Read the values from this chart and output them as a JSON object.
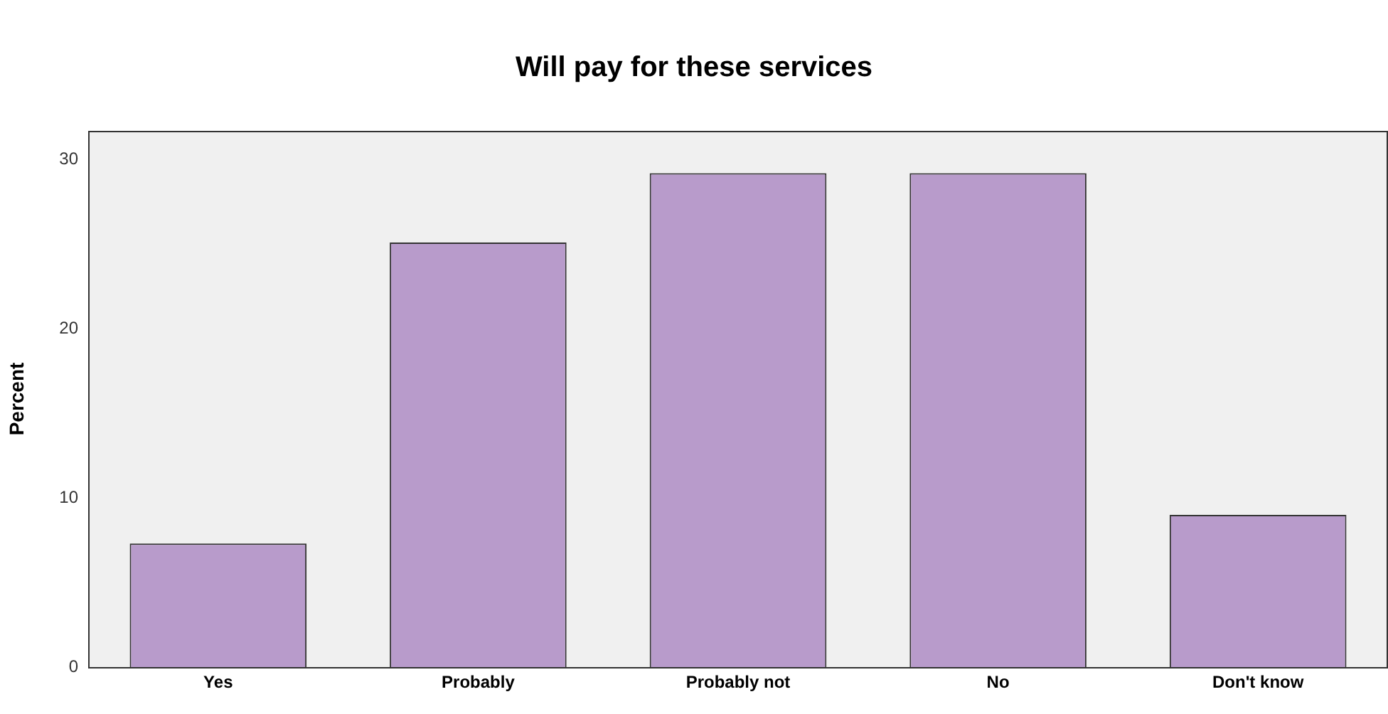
{
  "chart_data": {
    "type": "bar",
    "title": "Will pay for these services",
    "ylabel": "Percent",
    "categories": [
      "Yes",
      "Probably",
      "Probably not",
      "No",
      "Don't know"
    ],
    "values": [
      7.3,
      25.1,
      29.2,
      29.2,
      9.0
    ],
    "color": "#b89bcb",
    "ylim": [
      0,
      31.7
    ],
    "yticks": [
      0,
      10,
      20,
      30
    ],
    "grid": false,
    "legend": false
  }
}
